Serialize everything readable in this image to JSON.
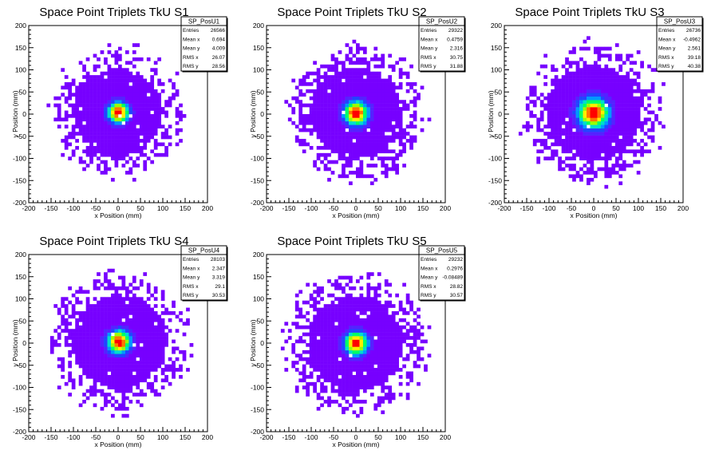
{
  "chart_data": [
    {
      "type": "heatmap",
      "title": "Space Point Triplets TkU S1",
      "xlabel": "x Position (mm)",
      "ylabel": "y Position (mm)",
      "xlim": [
        -200,
        200
      ],
      "ylim": [
        -200,
        200
      ],
      "xticks": [
        -200,
        -150,
        -100,
        -50,
        0,
        50,
        100,
        150,
        200
      ],
      "yticks": [
        -200,
        -150,
        -100,
        -50,
        0,
        50,
        100,
        150,
        200
      ],
      "stats": {
        "name": "SP_PosU1",
        "rows": [
          {
            "label": "Entries",
            "value": "26566"
          },
          {
            "label": "Mean x",
            "value": "0.694"
          },
          {
            "label": "Mean y",
            "value": "4.009"
          },
          {
            "label": "RMS x",
            "value": "26.07"
          },
          {
            "label": "RMS y",
            "value": "28.56"
          }
        ]
      },
      "distribution": {
        "center_x": 0.694,
        "center_y": 4.009,
        "rms_x": 26.07,
        "rms_y": 28.56,
        "entries": 26566,
        "radius_mm": 120
      }
    },
    {
      "type": "heatmap",
      "title": "Space Point Triplets TkU S2",
      "xlabel": "x Position (mm)",
      "ylabel": "y Position (mm)",
      "xlim": [
        -200,
        200
      ],
      "ylim": [
        -200,
        200
      ],
      "xticks": [
        -200,
        -150,
        -100,
        -50,
        0,
        50,
        100,
        150,
        200
      ],
      "yticks": [
        -200,
        -150,
        -100,
        -50,
        0,
        50,
        100,
        150,
        200
      ],
      "stats": {
        "name": "SP_PosU2",
        "rows": [
          {
            "label": "Entries",
            "value": "29322"
          },
          {
            "label": "Mean x",
            "value": "0.4759"
          },
          {
            "label": "Mean y",
            "value": "2.316"
          },
          {
            "label": "RMS x",
            "value": "30.75"
          },
          {
            "label": "RMS y",
            "value": "31.88"
          }
        ]
      },
      "distribution": {
        "center_x": 0.4759,
        "center_y": 2.316,
        "rms_x": 30.75,
        "rms_y": 31.88,
        "entries": 29322,
        "radius_mm": 125
      }
    },
    {
      "type": "heatmap",
      "title": "Space Point Triplets TkU S3",
      "xlabel": "x Position (mm)",
      "ylabel": "y Position (mm)",
      "xlim": [
        -200,
        200
      ],
      "ylim": [
        -200,
        200
      ],
      "xticks": [
        -200,
        -150,
        -100,
        -50,
        0,
        50,
        100,
        150,
        200
      ],
      "yticks": [
        -200,
        -150,
        -100,
        -50,
        0,
        50,
        100,
        150,
        200
      ],
      "stats": {
        "name": "SP_PosU3",
        "rows": [
          {
            "label": "Entries",
            "value": "26736"
          },
          {
            "label": "Mean x",
            "value": "-0.4962"
          },
          {
            "label": "Mean y",
            "value": "2.561"
          },
          {
            "label": "RMS x",
            "value": "39.18"
          },
          {
            "label": "RMS y",
            "value": "40.38"
          }
        ]
      },
      "distribution": {
        "center_x": -0.4962,
        "center_y": 2.561,
        "rms_x": 39.18,
        "rms_y": 40.38,
        "entries": 26736,
        "radius_mm": 130
      }
    },
    {
      "type": "heatmap",
      "title": "Space Point Triplets TkU S4",
      "xlabel": "x Position (mm)",
      "ylabel": "y Position (mm)",
      "xlim": [
        -200,
        200
      ],
      "ylim": [
        -200,
        200
      ],
      "xticks": [
        -200,
        -150,
        -100,
        -50,
        0,
        50,
        100,
        150,
        200
      ],
      "yticks": [
        -200,
        -150,
        -100,
        -50,
        0,
        50,
        100,
        150,
        200
      ],
      "stats": {
        "name": "SP_PosU4",
        "rows": [
          {
            "label": "Entries",
            "value": "28103"
          },
          {
            "label": "Mean x",
            "value": "2.347"
          },
          {
            "label": "Mean y",
            "value": "3.319"
          },
          {
            "label": "RMS x",
            "value": "29.1"
          },
          {
            "label": "RMS y",
            "value": "30.53"
          }
        ]
      },
      "distribution": {
        "center_x": 2.347,
        "center_y": 3.319,
        "rms_x": 29.1,
        "rms_y": 30.53,
        "entries": 28103,
        "radius_mm": 130
      }
    },
    {
      "type": "heatmap",
      "title": "Space Point Triplets TkU S5",
      "xlabel": "x Position (mm)",
      "ylabel": "y Position (mm)",
      "xlim": [
        -200,
        200
      ],
      "ylim": [
        -200,
        200
      ],
      "xticks": [
        -200,
        -150,
        -100,
        -50,
        0,
        50,
        100,
        150,
        200
      ],
      "yticks": [
        -200,
        -150,
        -100,
        -50,
        0,
        50,
        100,
        150,
        200
      ],
      "stats": {
        "name": "SP_PosU5",
        "rows": [
          {
            "label": "Entries",
            "value": "29232"
          },
          {
            "label": "Mean x",
            "value": "0.2976"
          },
          {
            "label": "Mean y",
            "value": "-0.08489"
          },
          {
            "label": "RMS x",
            "value": "28.82"
          },
          {
            "label": "RMS y",
            "value": "30.57"
          }
        ]
      },
      "distribution": {
        "center_x": 0.2976,
        "center_y": -0.08489,
        "rms_x": 28.82,
        "rms_y": 30.57,
        "entries": 29232,
        "radius_mm": 130
      }
    }
  ],
  "colors": {
    "background": "#ffffff",
    "axis": "#000000",
    "palette": [
      "#7700ff",
      "#5522ff",
      "#2244ff",
      "#0099ff",
      "#00ddcc",
      "#00ff66",
      "#99ff00",
      "#ffee00",
      "#ff7700",
      "#ff0000"
    ]
  }
}
